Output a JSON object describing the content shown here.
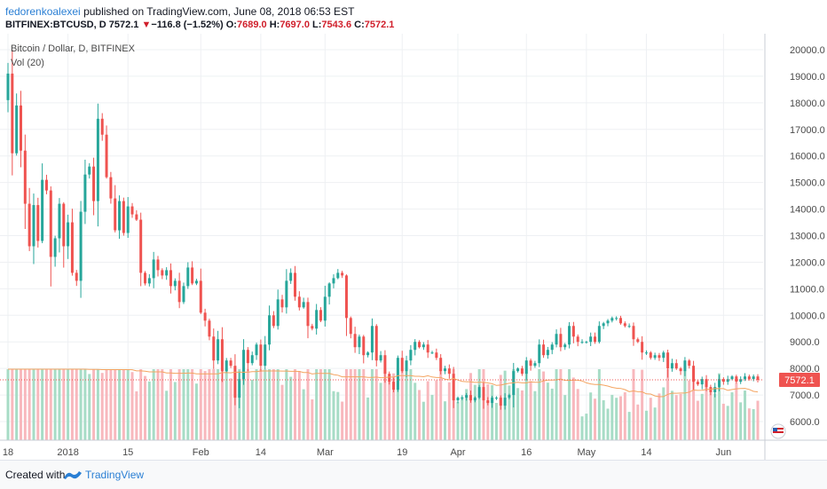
{
  "header": {
    "author": "fedorenkoalexei",
    "published": "published on TradingView.com, June 08, 2018 06:53 EST",
    "symbol": "BITFINEX:BTCUSD, D",
    "last": "7572.1",
    "change_arrow": "▼",
    "change": "−116.8 (−1.52%)",
    "o_label": "O:",
    "o": "7689.0",
    "h_label": "H:",
    "h": "7697.0",
    "l_label": "L:",
    "l": "7543.6",
    "c_label": "C:",
    "c": "7572.1"
  },
  "footer": {
    "created": "Created with",
    "brand": "TradingView",
    "logo_icon": "tradingview-logo-icon"
  },
  "colors": {
    "up": "#26a69a",
    "down": "#ef5350",
    "vol_up": "#a7dcc6",
    "vol_down": "#f8b8bd",
    "price_line": "#ef5350",
    "vol_ma": "#f4a460",
    "grid": "#eef0f3",
    "axis_text": "#4a4a4a"
  },
  "chart_data": {
    "type": "candlestick",
    "title": "Bitcoin / Dollar, D, BITFINEX",
    "indicator": "Vol (20)",
    "ylim": [
      5300,
      20600
    ],
    "y_ticks": [
      20000,
      19000,
      18000,
      17000,
      16000,
      15000,
      14000,
      13000,
      12000,
      11000,
      10000,
      9000,
      8000,
      7000,
      6000
    ],
    "y_tick_labels": [
      "20000.0",
      "19000.0",
      "18000.0",
      "17000.0",
      "16000.0",
      "15000.0",
      "14000.0",
      "13000.0",
      "12000.0",
      "11000.0",
      "10000.0",
      "9000.0",
      "8000.0",
      "7000.0",
      "6000.0"
    ],
    "last_price": 7572.1,
    "last_price_label": "7572.1",
    "x_tick_labels": [
      "18",
      "2018",
      "15",
      "Feb",
      "14",
      "Mar",
      "19",
      "Apr",
      "16",
      "May",
      "14",
      "Jun"
    ],
    "x_tick_index": [
      0,
      14,
      28,
      45,
      59,
      74,
      92,
      105,
      121,
      135,
      149,
      167
    ],
    "grid": true,
    "close": [
      19100,
      16100,
      17900,
      16200,
      14200,
      12600,
      14150,
      12800,
      15100,
      14700,
      12200,
      12900,
      14200,
      12600,
      13500,
      11600,
      11300,
      13900,
      15300,
      15600,
      14300,
      17400,
      16800,
      15200,
      14400,
      13200,
      14300,
      13100,
      14100,
      13800,
      13600,
      11600,
      11200,
      11400,
      12100,
      11700,
      11500,
      11700,
      11100,
      11300,
      10500,
      11100,
      11800,
      11200,
      11300,
      10100,
      9800,
      9200,
      8300,
      9100,
      7900,
      8300,
      8100,
      6900,
      7600,
      8700,
      8200,
      8500,
      8900,
      8100,
      8900,
      10000,
      9600,
      10600,
      10300,
      11300,
      11600,
      10700,
      10300,
      10500,
      9600,
      9500,
      10200,
      9800,
      10700,
      11200,
      11400,
      11600,
      11500,
      9900,
      9300,
      8800,
      9200,
      8500,
      8600,
      9600,
      8300,
      8500,
      7800,
      7500,
      7200,
      8400,
      7900,
      8300,
      8700,
      9000,
      8800,
      8900,
      8600,
      8600,
      8400,
      7900,
      8000,
      7800,
      6800,
      6900,
      6900,
      7000,
      6800,
      6900,
      7300,
      6800,
      6700,
      6900,
      6900,
      6600,
      6900,
      7000,
      7900,
      8000,
      7800,
      8300,
      8100,
      8200,
      8900,
      8500,
      8700,
      8900,
      9300,
      8800,
      8900,
      9600,
      9200,
      9000,
      9000,
      9000,
      9200,
      9000,
      9600,
      9700,
      9800,
      9900,
      9900,
      9700,
      9600,
      9600,
      9100,
      9000,
      8600,
      8600,
      8400,
      8500,
      8400,
      8600,
      8000,
      8200,
      8000,
      7900,
      8300,
      8100,
      7500,
      7400,
      7600,
      7300,
      7100,
      7300,
      7600,
      7500,
      7600,
      7700,
      7500,
      7600,
      7700,
      7600,
      7700,
      7572
    ]
  }
}
